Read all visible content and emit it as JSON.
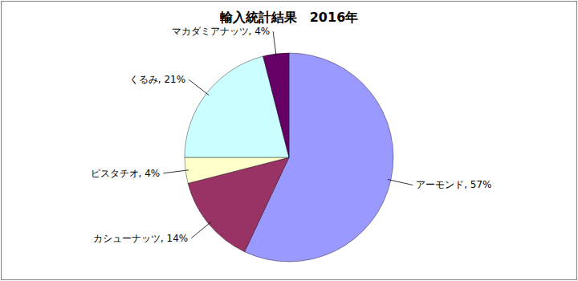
{
  "chart_data": {
    "type": "pie",
    "title": "輸入統計結果　2016年",
    "categories": [
      "アーモンド",
      "カシューナッツ",
      "ピスタチオ",
      "くるみ",
      "マカダミアナッツ"
    ],
    "values": [
      57,
      14,
      4,
      21,
      4
    ],
    "value_labels": [
      "アーモンド, 57%",
      "カシューナッツ, 14%",
      "ピスタチオ, 4%",
      "くるみ, 21%",
      "マカダミアナッツ, 4%"
    ],
    "colors": [
      "#9999ff",
      "#993366",
      "#ffffcc",
      "#ccffff",
      "#660066"
    ],
    "data_labels": true
  }
}
